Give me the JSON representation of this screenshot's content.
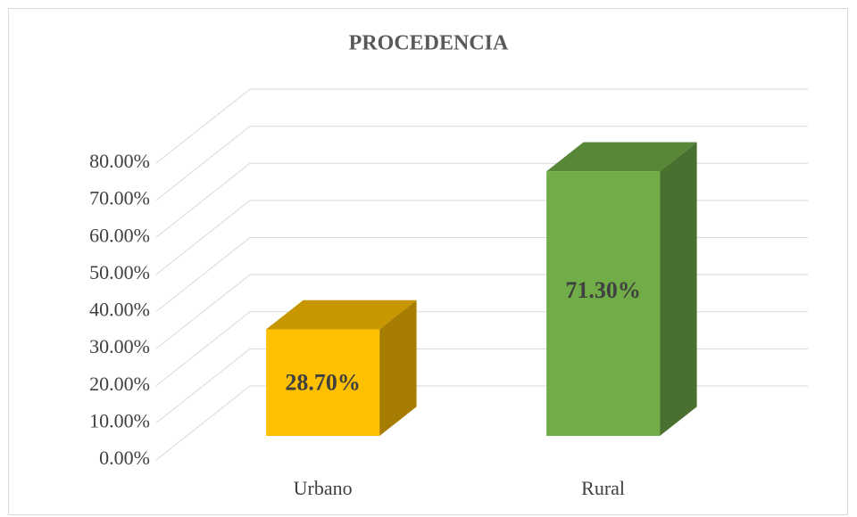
{
  "chart_data": {
    "type": "bar3d",
    "title": "PROCEDENCIA",
    "categories": [
      "Urbano",
      "Rural"
    ],
    "values": [
      28.7,
      71.3
    ],
    "value_labels": [
      "28.70%",
      "71.30%"
    ],
    "colors": [
      "#ffc000",
      "#70ad47"
    ],
    "ylim": [
      0,
      80
    ],
    "yticks": [
      {
        "value": 0,
        "label": "0.00%"
      },
      {
        "value": 10,
        "label": "10.00%"
      },
      {
        "value": 20,
        "label": "20.00%"
      },
      {
        "value": 30,
        "label": "30.00%"
      },
      {
        "value": 40,
        "label": "40.00%"
      },
      {
        "value": 50,
        "label": "50.00%"
      },
      {
        "value": 60,
        "label": "60.00%"
      },
      {
        "value": 70,
        "label": "70.00%"
      },
      {
        "value": 80,
        "label": "80.00%"
      }
    ],
    "grid": true
  }
}
